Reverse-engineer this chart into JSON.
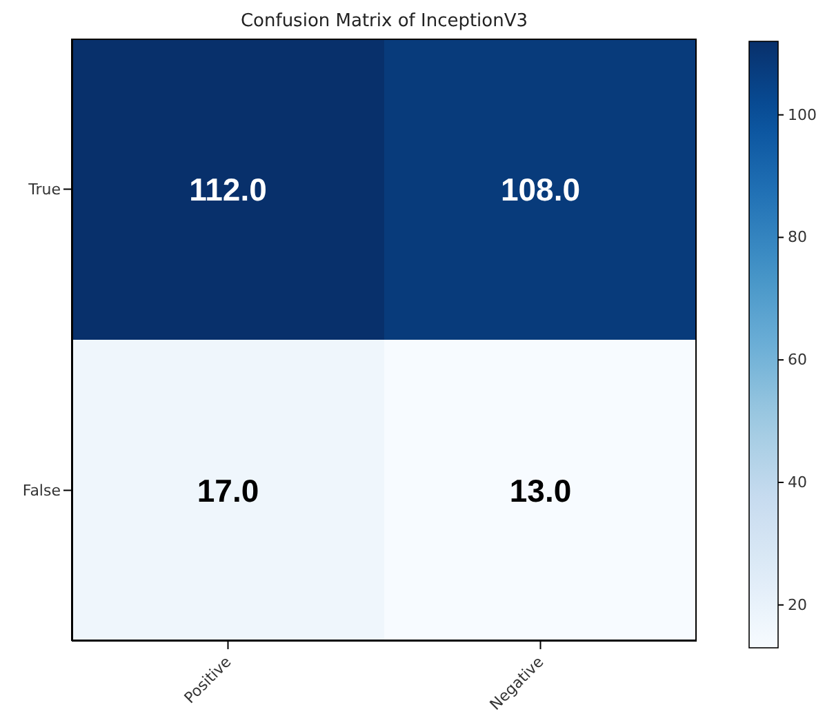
{
  "chart_data": {
    "type": "heatmap",
    "title": "Confusion Matrix of InceptionV3",
    "categories": [
      "Positive",
      "Negative"
    ],
    "y_categories": [
      "True",
      "False"
    ],
    "cells": [
      [
        112,
        108
      ],
      [
        17,
        13
      ]
    ],
    "cell_labels": [
      [
        "112.0",
        "108.0"
      ],
      [
        "17.0",
        "13.0"
      ]
    ],
    "clim": [
      13,
      112
    ],
    "cticks": [
      20,
      40,
      60,
      80,
      100
    ]
  }
}
